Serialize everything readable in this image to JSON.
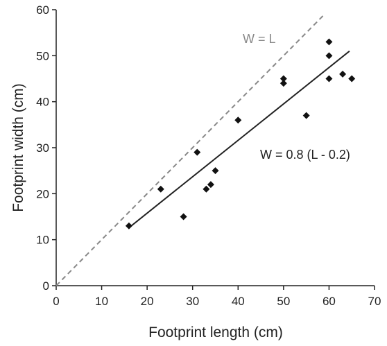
{
  "chart_data": {
    "type": "scatter",
    "title": "",
    "xlabel": "Footprint length (cm)",
    "ylabel": "Footprint width (cm)",
    "xlim": [
      0,
      70
    ],
    "ylim": [
      0,
      60
    ],
    "xticks": [
      0,
      10,
      20,
      30,
      40,
      50,
      60,
      70
    ],
    "yticks": [
      0,
      10,
      20,
      30,
      40,
      50,
      60
    ],
    "grid": false,
    "points": [
      {
        "x": 16,
        "y": 13
      },
      {
        "x": 23,
        "y": 21
      },
      {
        "x": 28,
        "y": 15
      },
      {
        "x": 31,
        "y": 29
      },
      {
        "x": 33,
        "y": 21
      },
      {
        "x": 34,
        "y": 22
      },
      {
        "x": 35,
        "y": 25
      },
      {
        "x": 40,
        "y": 36
      },
      {
        "x": 50,
        "y": 45
      },
      {
        "x": 50,
        "y": 44
      },
      {
        "x": 55,
        "y": 37
      },
      {
        "x": 60,
        "y": 53
      },
      {
        "x": 60,
        "y": 50
      },
      {
        "x": 60,
        "y": 45
      },
      {
        "x": 63,
        "y": 46
      },
      {
        "x": 65,
        "y": 45
      }
    ],
    "lines": [
      {
        "label": "W = L",
        "style": "dashed",
        "color": "#888888",
        "x": [
          0,
          59
        ],
        "y": [
          0,
          59
        ]
      },
      {
        "label": "W = 0.8 (L - 0.2)",
        "style": "solid",
        "color": "#222222",
        "x": [
          16,
          64.5
        ],
        "y": [
          12.6,
          51
        ]
      }
    ],
    "annotations": {
      "identity": "W = L",
      "fit": "W = 0.8 (L - 0.2)"
    }
  }
}
